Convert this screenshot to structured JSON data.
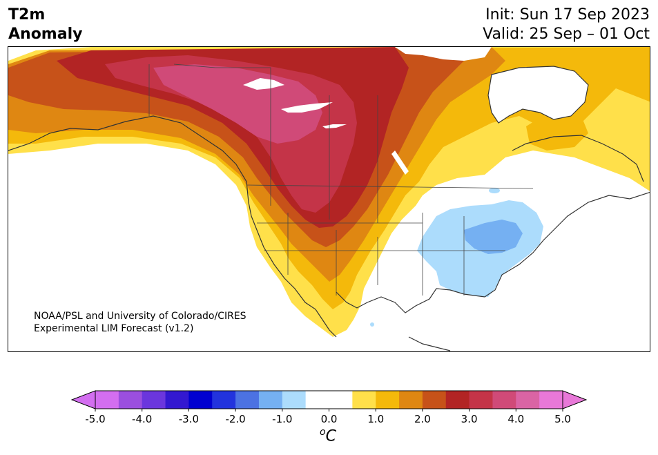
{
  "title": {
    "line1": "T2m",
    "line2": "Anomaly"
  },
  "init": "Init: Sun 17 Sep 2023",
  "valid": "Valid: 25 Sep – 01 Oct",
  "credit": {
    "line1": "NOAA/PSL and University of Colorado/CIRES",
    "line2": "Experimental LIM Forecast (v1.2)"
  },
  "colorbar": {
    "unit_prefix": "o",
    "unit": "C",
    "ticks": [
      "-5.0",
      "-4.0",
      "-3.0",
      "-2.0",
      "-1.0",
      "0.0",
      "1.0",
      "2.0",
      "3.0",
      "4.0",
      "5.0"
    ],
    "colors": [
      "#d36ef0",
      "#9b4fdf",
      "#6b36dd",
      "#3318d0",
      "#0000d0",
      "#2233dd",
      "#4c72e2",
      "#75b0f2",
      "#acdcfc",
      "#ffffff",
      "#ffffff",
      "#ffe04a",
      "#f4b90b",
      "#df8712",
      "#c75219",
      "#b22424",
      "#c43448",
      "#d04a78",
      "#da64a4",
      "#e878d8"
    ],
    "under_color": "#d36ef0",
    "over_color": "#e878d8"
  },
  "legend_colors": {
    "warm1": "#ffe04a",
    "warm2": "#f4b90b",
    "warm3": "#df8712",
    "warm4": "#c75219",
    "warm5": "#b22424",
    "warm6": "#c43448",
    "warm7": "#d04a78",
    "cool1": "#acdcfc",
    "cool2": "#75b0f2"
  }
}
